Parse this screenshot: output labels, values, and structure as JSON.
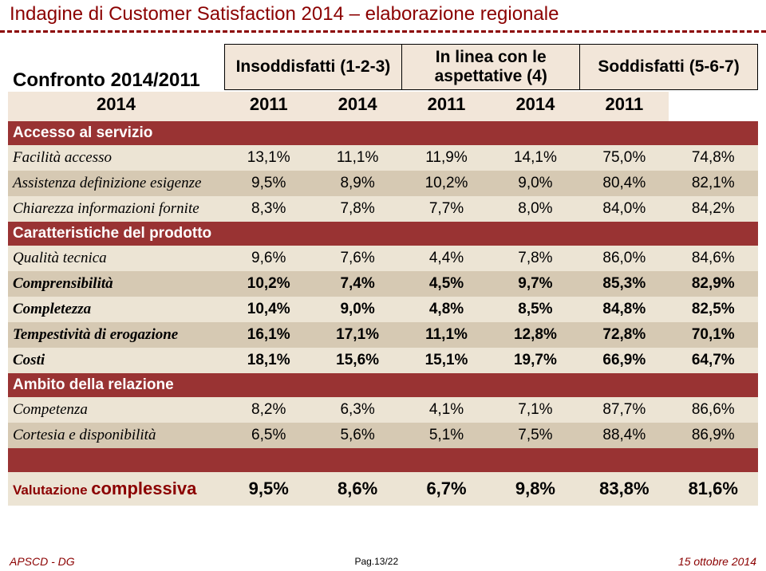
{
  "colors": {
    "accent": "#8b0000",
    "section_bg": "#993333",
    "header_cell_bg": "#f2e6d9",
    "stripe_even": "#d6c9b3",
    "stripe_odd": "#ece4d4",
    "text": "#000000",
    "white": "#ffffff"
  },
  "title": "Indagine di Customer Satisfaction 2014 – elaborazione regionale",
  "compare_label": "Confronto 2014/2011",
  "column_groups": [
    {
      "label": "Insoddisfatti (1-2-3)",
      "years": [
        "2014",
        "2011"
      ]
    },
    {
      "label": "In linea con le aspettative (4)",
      "years": [
        "2014",
        "2011"
      ]
    },
    {
      "label": "Soddisfatti (5-6-7)",
      "years": [
        "2014",
        "2011"
      ]
    }
  ],
  "sections": [
    {
      "label": "Accesso al servizio",
      "rows": [
        {
          "label": "Facilità accesso",
          "bold": false,
          "vals": [
            "13,1%",
            "11,1%",
            "11,9%",
            "14,1%",
            "75,0%",
            "74,8%"
          ]
        },
        {
          "label": "Assistenza definizione esigenze",
          "bold": false,
          "vals": [
            "9,5%",
            "8,9%",
            "10,2%",
            "9,0%",
            "80,4%",
            "82,1%"
          ]
        },
        {
          "label": "Chiarezza informazioni fornite",
          "bold": false,
          "vals": [
            "8,3%",
            "7,8%",
            "7,7%",
            "8,0%",
            "84,0%",
            "84,2%"
          ]
        }
      ]
    },
    {
      "label": "Caratteristiche del prodotto",
      "rows": [
        {
          "label": "Qualità tecnica",
          "bold": false,
          "vals": [
            "9,6%",
            "7,6%",
            "4,4%",
            "7,8%",
            "86,0%",
            "84,6%"
          ]
        },
        {
          "label": "Comprensibilità",
          "bold": true,
          "vals": [
            "10,2%",
            "7,4%",
            "4,5%",
            "9,7%",
            "85,3%",
            "82,9%"
          ]
        },
        {
          "label": "Completezza",
          "bold": true,
          "vals": [
            "10,4%",
            "9,0%",
            "4,8%",
            "8,5%",
            "84,8%",
            "82,5%"
          ]
        },
        {
          "label": "Tempestività di erogazione",
          "bold": true,
          "vals": [
            "16,1%",
            "17,1%",
            "11,1%",
            "12,8%",
            "72,8%",
            "70,1%"
          ]
        },
        {
          "label": "Costi",
          "bold": true,
          "vals": [
            "18,1%",
            "15,6%",
            "15,1%",
            "19,7%",
            "66,9%",
            "64,7%"
          ]
        }
      ]
    },
    {
      "label": "Ambito della relazione",
      "rows": [
        {
          "label": "Competenza",
          "bold": false,
          "vals": [
            "8,2%",
            "6,3%",
            "4,1%",
            "7,1%",
            "87,7%",
            "86,6%"
          ]
        },
        {
          "label": "Cortesia e disponibilità",
          "bold": false,
          "vals": [
            "6,5%",
            "5,6%",
            "5,1%",
            "7,5%",
            "88,4%",
            "86,9%"
          ]
        }
      ]
    }
  ],
  "summary": {
    "label_prefix": "Valutazione ",
    "label_main": "complessiva",
    "vals": [
      "9,5%",
      "8,6%",
      "6,7%",
      "9,8%",
      "83,8%",
      "81,6%"
    ]
  },
  "footer": {
    "left": "APSCD - DG",
    "center": "Pag.13/22",
    "right": "15 ottobre 2014"
  }
}
